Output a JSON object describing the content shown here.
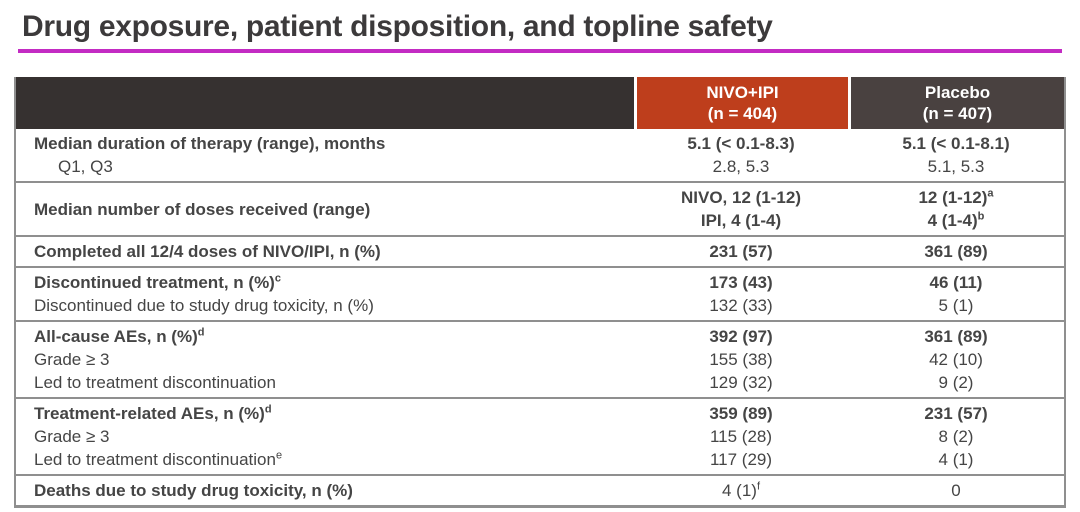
{
  "title": "Drug exposure, patient disposition, and topline safety",
  "colors": {
    "title_text": "#3C3A3B",
    "title_underline": "#C32BC3",
    "header_empty_bg": "#363130",
    "header_nivo_bg": "#BE3E1C",
    "header_placebo_bg": "#494140",
    "header_text": "#FFFFFF",
    "body_text": "#454545",
    "grid_line": "#8F8F8F"
  },
  "table": {
    "columns": [
      {
        "label": "",
        "sub": ""
      },
      {
        "label": "NIVO+IPI",
        "sub": "(n = 404)"
      },
      {
        "label": "Placebo",
        "sub": "(n = 407)"
      }
    ],
    "rows": [
      {
        "cells": {
          "label": [
            {
              "text": "Median duration of therapy (range), months",
              "bold": true
            },
            {
              "text": "Q1, Q3",
              "indent": true
            }
          ],
          "nivo": [
            {
              "text": "5.1 (< 0.1-8.3)",
              "bold": true
            },
            {
              "text": "2.8, 5.3"
            }
          ],
          "placebo": [
            {
              "text": "5.1 (< 0.1-8.1)",
              "bold": true
            },
            {
              "text": "5.1, 5.3"
            }
          ]
        }
      },
      {
        "cells": {
          "label": [
            {
              "text": "Median number of doses received (range)",
              "bold": true
            }
          ],
          "nivo": [
            {
              "text": "NIVO, 12 (1-12)",
              "bold": true
            },
            {
              "text": "IPI, 4 (1-4)",
              "bold": true
            }
          ],
          "placebo": [
            {
              "text": "12 (1-12)",
              "sup": "a",
              "bold": true
            },
            {
              "text": "4 (1-4)",
              "sup": "b",
              "bold": true
            }
          ]
        }
      },
      {
        "cells": {
          "label": [
            {
              "text": "Completed all 12/4 doses of NIVO/IPI, n (%)",
              "bold": true
            }
          ],
          "nivo": [
            {
              "text": "231 (57)",
              "bold": true
            }
          ],
          "placebo": [
            {
              "text": "361 (89)",
              "bold": true
            }
          ]
        }
      },
      {
        "cells": {
          "label": [
            {
              "text": "Discontinued treatment, n (%)",
              "sup": "c",
              "bold": true
            },
            {
              "text": "Discontinued due to study drug toxicity, n (%)"
            }
          ],
          "nivo": [
            {
              "text": "173 (43)",
              "bold": true
            },
            {
              "text": "132 (33)"
            }
          ],
          "placebo": [
            {
              "text": "46 (11)",
              "bold": true
            },
            {
              "text": "5 (1)"
            }
          ]
        }
      },
      {
        "cells": {
          "label": [
            {
              "text": "All-cause AEs, n (%)",
              "sup": "d",
              "bold": true
            },
            {
              "text": "Grade ≥ 3"
            },
            {
              "text": "Led to treatment discontinuation"
            }
          ],
          "nivo": [
            {
              "text": "392 (97)",
              "bold": true
            },
            {
              "text": "155 (38)"
            },
            {
              "text": "129 (32)"
            }
          ],
          "placebo": [
            {
              "text": "361 (89)",
              "bold": true
            },
            {
              "text": "42 (10)"
            },
            {
              "text": "9 (2)"
            }
          ]
        }
      },
      {
        "cells": {
          "label": [
            {
              "text": "Treatment-related AEs, n (%)",
              "sup": "d",
              "bold": true
            },
            {
              "text": "Grade ≥ 3"
            },
            {
              "text": "Led to treatment discontinuation",
              "sup": "e"
            }
          ],
          "nivo": [
            {
              "text": "359 (89)",
              "bold": true
            },
            {
              "text": "115 (28)"
            },
            {
              "text": "117 (29)"
            }
          ],
          "placebo": [
            {
              "text": "231 (57)",
              "bold": true
            },
            {
              "text": "8 (2)"
            },
            {
              "text": "4 (1)"
            }
          ]
        }
      },
      {
        "cells": {
          "label": [
            {
              "text": "Deaths due to study drug toxicity, n (%)",
              "bold": true
            }
          ],
          "nivo": [
            {
              "text": "4 (1)",
              "sup": "f"
            }
          ],
          "placebo": [
            {
              "text": "0"
            }
          ]
        }
      }
    ]
  }
}
